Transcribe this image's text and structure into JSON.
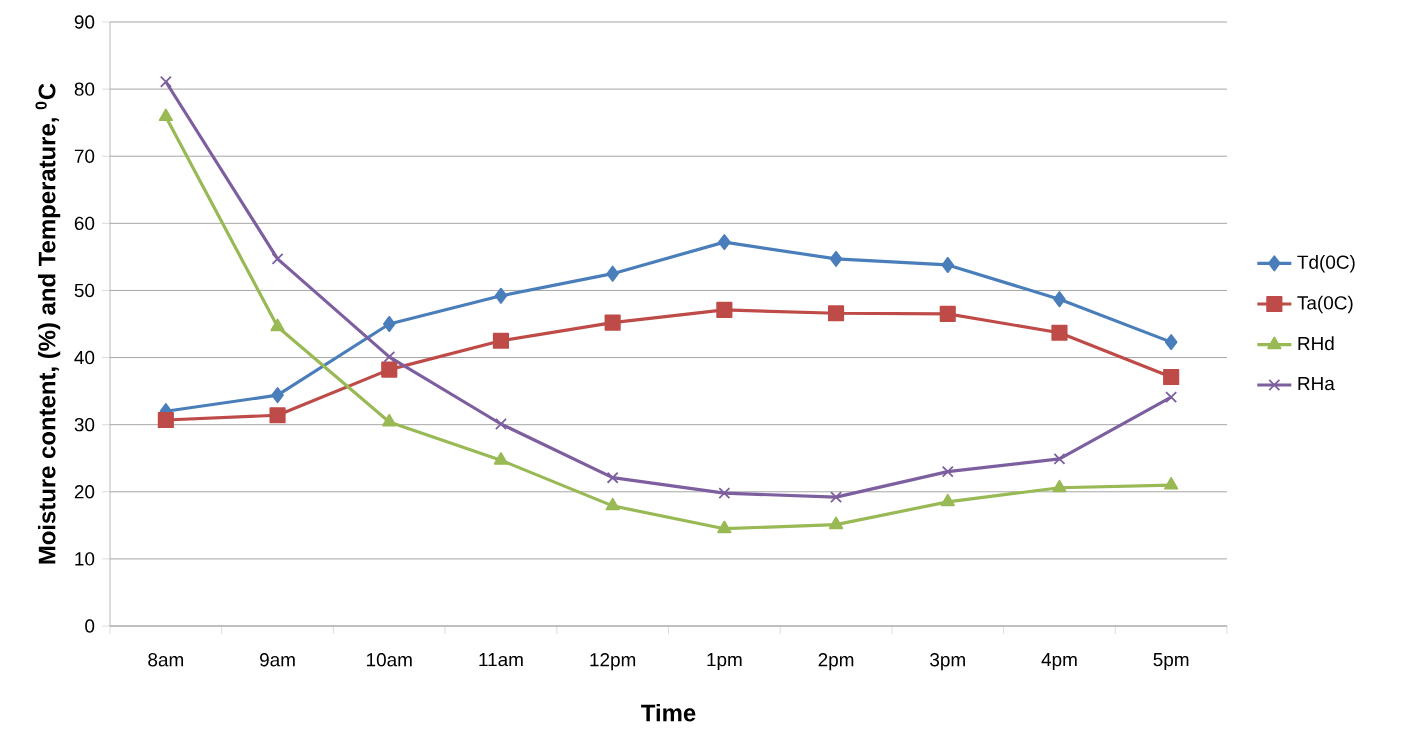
{
  "chart_data": {
    "type": "line",
    "xlabel": "Time",
    "ylabel": "Moisture content, (%) and Temperature, $^{0}$C",
    "categories": [
      "8am",
      "9am",
      "10am",
      "11am",
      "12pm",
      "1pm",
      "2pm",
      "3pm",
      "4pm",
      "5pm"
    ],
    "series": [
      {
        "name": "Td(0C)",
        "color": "#4a7ebb",
        "marker": "diamond",
        "values": [
          32.0,
          34.4,
          45.0,
          49.2,
          52.5,
          57.2,
          54.7,
          53.8,
          48.7,
          42.3
        ]
      },
      {
        "name": "Ta(0C)",
        "color": "#be4b48",
        "marker": "square",
        "values": [
          30.7,
          31.4,
          38.2,
          42.5,
          45.2,
          47.1,
          46.6,
          46.5,
          43.7,
          37.1
        ]
      },
      {
        "name": "RHd",
        "color": "#98b954",
        "marker": "triangle",
        "values": [
          75.9,
          44.6,
          30.4,
          24.7,
          17.9,
          14.5,
          15.1,
          18.5,
          20.6,
          21.0
        ]
      },
      {
        "name": "RHa",
        "color": "#7d5fa0",
        "marker": "cross",
        "values": [
          81.1,
          54.7,
          40.1,
          30.1,
          22.1,
          19.8,
          19.2,
          23.0,
          24.9,
          34.1
        ]
      }
    ],
    "ylim": [
      0,
      90
    ],
    "yticks": [
      0,
      10,
      20,
      30,
      40,
      50,
      60,
      70,
      80,
      90
    ],
    "grid": "y",
    "legend": "right",
    "line_style": "solid"
  }
}
